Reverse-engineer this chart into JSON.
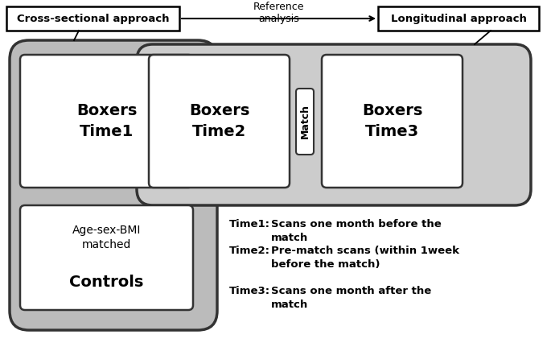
{
  "bg_color": "#ffffff",
  "cross_sectional_label": "Cross-sectional approach",
  "longitudinal_label": "Longitudinal approach",
  "reference_label": "Reference\nanalysis",
  "boxers_time1": "Boxers\nTime1",
  "boxers_time2": "Boxers\nTime2",
  "boxers_time3": "Boxers\nTime3",
  "match_label": "Match",
  "controls_line1": "Age-sex-BMI",
  "controls_line2": "matched",
  "controls_line3": "Controls",
  "time1_label": "Time1:",
  "time1_desc": "Scans one month before the\nmatch",
  "time2_label": "Time2:",
  "time2_desc": "Pre-match scans (within 1week\nbefore the match)",
  "time3_label": "Time3:",
  "time3_desc": "Scans one month after the\nmatch",
  "outer_cs_color": "#b8b8b8",
  "outer_long_color": "#c8c8c8",
  "box_edge": "#333333",
  "inner_edge": "#444444"
}
